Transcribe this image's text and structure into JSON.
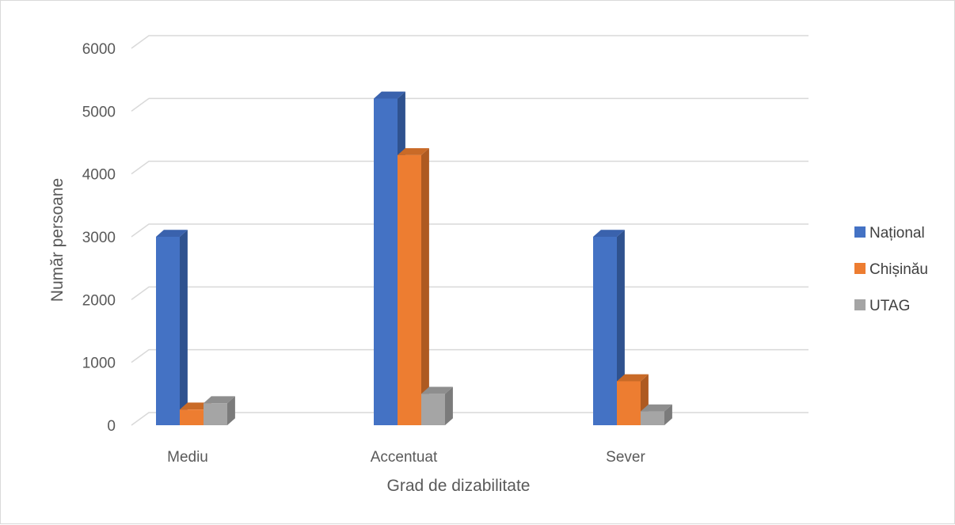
{
  "chart_data": {
    "type": "bar",
    "style": "3d-clustered-column",
    "categories": [
      "Mediu",
      "Accentuat",
      "Sever"
    ],
    "series": [
      {
        "name": "Național",
        "values": [
          3000,
          5200,
          3000
        ],
        "color": "#4472C4",
        "side_color": "#2F528F",
        "top_color": "#3A62AD"
      },
      {
        "name": "Chișinău",
        "values": [
          250,
          4300,
          700
        ],
        "color": "#ED7D31",
        "side_color": "#AE5A21",
        "top_color": "#C96A27"
      },
      {
        "name": "UTAG",
        "values": [
          350,
          500,
          220
        ],
        "color": "#A5A5A5",
        "side_color": "#7B7B7B",
        "top_color": "#8E8E8E"
      }
    ],
    "xlabel": "Grad de dizabilitate",
    "ylabel": "Număr persoane",
    "ylim": [
      0,
      6000
    ],
    "yticks": [
      0,
      1000,
      2000,
      3000,
      4000,
      5000,
      6000
    ],
    "grid": true,
    "legend_position": "right"
  }
}
